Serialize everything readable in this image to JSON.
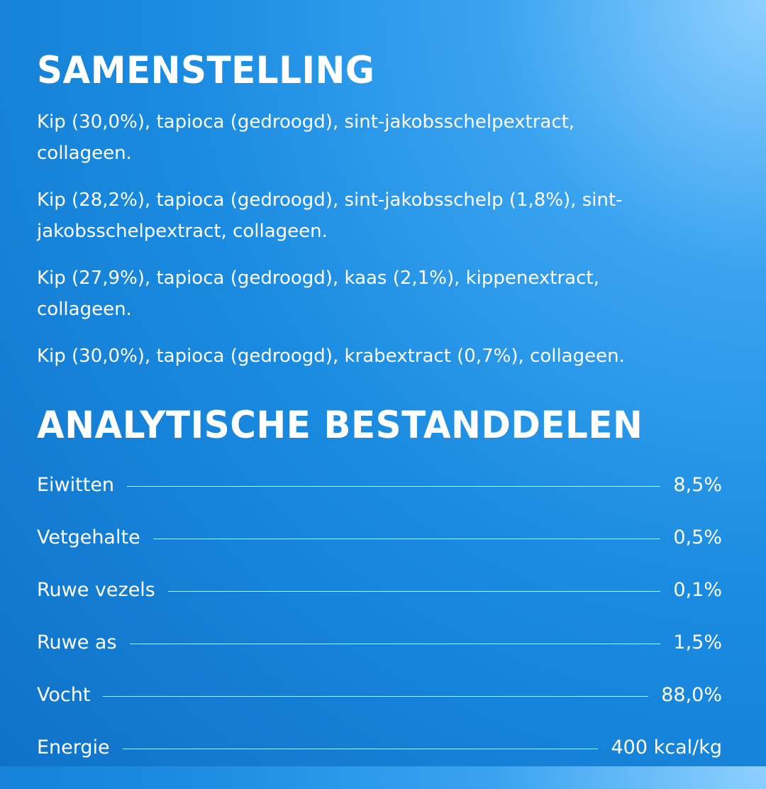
{
  "composition": {
    "title": "SAMENSTELLING",
    "paragraphs": [
      "Kip (30,0%), tapioca (gedroogd), sint-jakobsschelpextract, collageen.",
      "Kip (28,2%), tapioca (gedroogd), sint-jakobsschelp (1,8%), sint-jakobsschelpextract, collageen.",
      "Kip (27,9%), tapioca (gedroogd), kaas (2,1%), kippenextract, collageen.",
      "Kip (30,0%), tapioca (gedroogd), krabextract (0,7%), collageen."
    ]
  },
  "analysis": {
    "title": "ANALYTISCHE BESTANDDELEN",
    "rows": [
      [
        "Eiwitten",
        "8,5%"
      ],
      [
        "Vetgehalte",
        "0,5%"
      ],
      [
        "Ruwe vezels",
        "0,1%"
      ],
      [
        "Ruwe as",
        "1,5%"
      ],
      [
        "Vocht",
        "88,0%"
      ],
      [
        "Energie",
        "400 kcal/kg"
      ]
    ]
  }
}
